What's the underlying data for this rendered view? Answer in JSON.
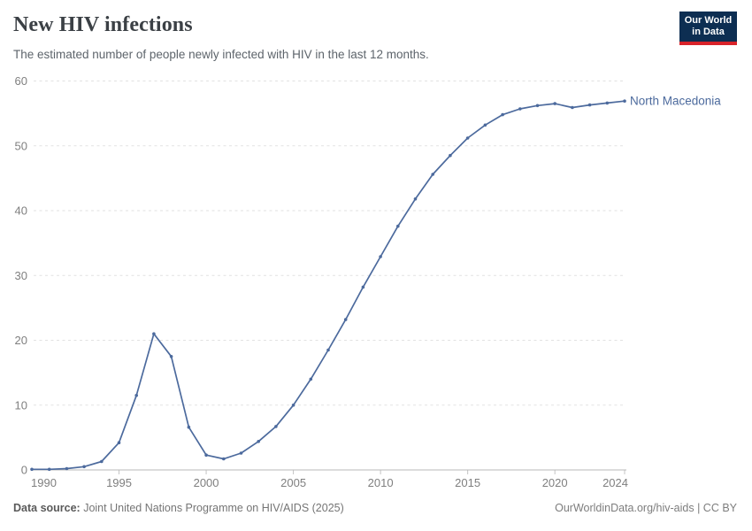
{
  "header": {
    "title": "New HIV infections",
    "subtitle": "The estimated number of people newly infected with HIV in the last 12 months."
  },
  "logo": {
    "line1": "Our World",
    "line2": "in Data",
    "bg_color": "#0d2e52",
    "accent_color": "#d8232a"
  },
  "chart_data": {
    "type": "line",
    "title": "New HIV infections",
    "xlabel": "",
    "ylabel": "",
    "xlim": [
      1990,
      2024
    ],
    "ylim": [
      0,
      60
    ],
    "grid": "horizontal-dashed",
    "legend_position": "end-of-line-label",
    "x_ticks": [
      1990,
      1995,
      2000,
      2005,
      2010,
      2015,
      2020,
      2024
    ],
    "y_ticks": [
      0,
      10,
      20,
      30,
      40,
      50,
      60
    ],
    "x": [
      1990,
      1991,
      1992,
      1993,
      1994,
      1995,
      1996,
      1997,
      1998,
      1999,
      2000,
      2001,
      2002,
      2003,
      2004,
      2005,
      2006,
      2007,
      2008,
      2009,
      2010,
      2011,
      2012,
      2013,
      2014,
      2015,
      2016,
      2017,
      2018,
      2019,
      2020,
      2021,
      2022,
      2023,
      2024
    ],
    "series": [
      {
        "name": "North Macedonia",
        "color": "#4c6a9d",
        "values": [
          0.1,
          0.1,
          0.2,
          0.5,
          1.3,
          4.2,
          11.5,
          21,
          17.5,
          6.6,
          2.3,
          1.7,
          2.6,
          4.4,
          6.7,
          10,
          14,
          18.5,
          23.2,
          28.2,
          32.9,
          37.6,
          41.8,
          45.6,
          48.5,
          51.2,
          53.2,
          54.8,
          55.7,
          56.2,
          56.5,
          55.9,
          56.3,
          56.6,
          56.9
        ]
      }
    ]
  },
  "footer": {
    "source_label": "Data source:",
    "source_text": " Joint United Nations Programme on HIV/AIDS (2025)",
    "link_text": "OurWorldinData.org/hiv-aids | CC BY"
  },
  "colors": {
    "line": "#4c6a9d",
    "gridline": "#e2e2e2",
    "axis_line": "#b8b8b8",
    "tick": "#c4c4c4",
    "tick_label": "#7f7f7f",
    "title": "#3b4045",
    "subtitle": "#5d646b"
  }
}
